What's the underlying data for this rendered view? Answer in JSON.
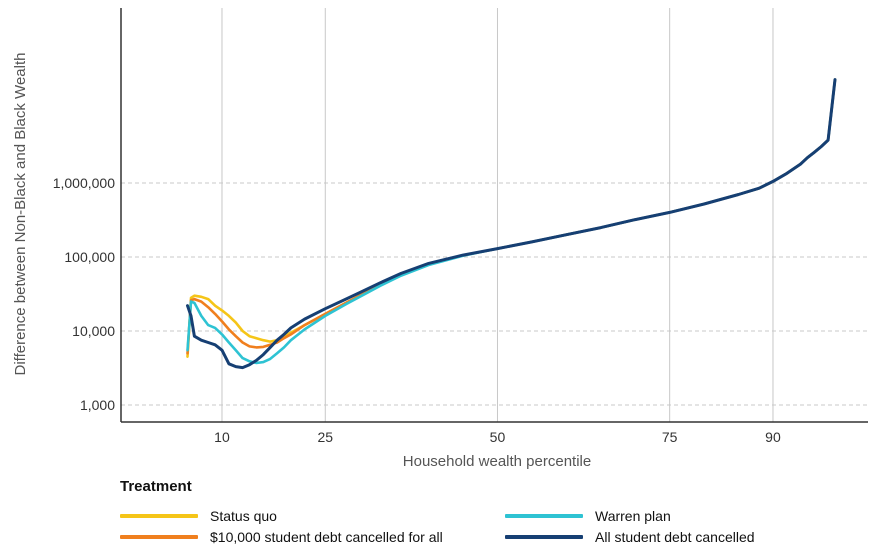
{
  "chart_data": {
    "type": "line",
    "xlabel": "Household wealth percentile",
    "ylabel": "Difference between Non-Black and Black Wealth",
    "x_ticks": [
      10,
      25,
      50,
      75,
      90
    ],
    "x_tick_labels": [
      "10",
      "25",
      "50",
      "75",
      "90"
    ],
    "y_scale": "log",
    "y_ticks": [
      1000,
      10000,
      100000,
      1000000
    ],
    "y_tick_labels": [
      "1,000",
      "10,000",
      "100,000",
      "1,000,000"
    ],
    "xlim": [
      0,
      100
    ],
    "ylim": [
      400,
      30000000
    ],
    "grid": true,
    "legend_title": "Treatment",
    "legend_position": "bottom",
    "series": [
      {
        "name": "Status quo",
        "color": "#f5c518",
        "points": [
          [
            5,
            4500
          ],
          [
            5.5,
            28000
          ],
          [
            6,
            30000
          ],
          [
            7,
            29000
          ],
          [
            8,
            27000
          ],
          [
            9,
            22000
          ],
          [
            10,
            19000
          ],
          [
            11,
            16000
          ],
          [
            12,
            13000
          ],
          [
            13,
            10000
          ],
          [
            14,
            8500
          ],
          [
            15,
            8000
          ],
          [
            16,
            7500
          ],
          [
            17,
            7200
          ],
          [
            18,
            7500
          ],
          [
            19,
            8500
          ],
          [
            20,
            9500
          ],
          [
            22,
            12000
          ],
          [
            25,
            17000
          ],
          [
            28,
            24000
          ],
          [
            30,
            30000
          ],
          [
            33,
            42000
          ],
          [
            36,
            58000
          ],
          [
            40,
            80000
          ],
          [
            45,
            105000
          ],
          [
            50,
            130000
          ],
          [
            55,
            160000
          ],
          [
            60,
            200000
          ],
          [
            65,
            250000
          ],
          [
            70,
            320000
          ],
          [
            75,
            400000
          ],
          [
            80,
            520000
          ],
          [
            85,
            700000
          ],
          [
            88,
            850000
          ],
          [
            90,
            1050000
          ],
          [
            92,
            1350000
          ],
          [
            94,
            1800000
          ],
          [
            95,
            2200000
          ],
          [
            96,
            2600000
          ],
          [
            97,
            3100000
          ],
          [
            98,
            3800000
          ],
          [
            99,
            25000000
          ]
        ]
      },
      {
        "name": "$10,000 student debt cancelled for all",
        "color": "#f07f1e",
        "points": [
          [
            5,
            5000
          ],
          [
            5.5,
            26000
          ],
          [
            6,
            27000
          ],
          [
            7,
            25000
          ],
          [
            8,
            21000
          ],
          [
            9,
            17000
          ],
          [
            10,
            13500
          ],
          [
            11,
            10500
          ],
          [
            12,
            8500
          ],
          [
            13,
            7000
          ],
          [
            14,
            6200
          ],
          [
            15,
            6000
          ],
          [
            16,
            6100
          ],
          [
            17,
            6500
          ],
          [
            18,
            7000
          ],
          [
            19,
            8000
          ],
          [
            20,
            9000
          ],
          [
            22,
            12000
          ],
          [
            25,
            17000
          ],
          [
            28,
            24000
          ],
          [
            30,
            30000
          ],
          [
            33,
            42000
          ],
          [
            36,
            58000
          ],
          [
            40,
            80000
          ],
          [
            45,
            105000
          ],
          [
            50,
            130000
          ],
          [
            55,
            160000
          ],
          [
            60,
            200000
          ],
          [
            65,
            250000
          ],
          [
            70,
            320000
          ],
          [
            75,
            400000
          ],
          [
            80,
            520000
          ],
          [
            85,
            700000
          ],
          [
            88,
            850000
          ],
          [
            90,
            1050000
          ],
          [
            92,
            1350000
          ],
          [
            94,
            1800000
          ],
          [
            95,
            2200000
          ],
          [
            96,
            2600000
          ],
          [
            97,
            3100000
          ],
          [
            98,
            3800000
          ],
          [
            99,
            25000000
          ]
        ]
      },
      {
        "name": "Warren plan",
        "color": "#2ec3d3",
        "points": [
          [
            5,
            5500
          ],
          [
            5.5,
            25000
          ],
          [
            6,
            24000
          ],
          [
            7,
            16000
          ],
          [
            8,
            12000
          ],
          [
            9,
            11000
          ],
          [
            10,
            9000
          ],
          [
            11,
            7000
          ],
          [
            12,
            5500
          ],
          [
            13,
            4300
          ],
          [
            14,
            3900
          ],
          [
            15,
            3700
          ],
          [
            16,
            3800
          ],
          [
            17,
            4200
          ],
          [
            18,
            5000
          ],
          [
            19,
            6000
          ],
          [
            20,
            7500
          ],
          [
            22,
            10500
          ],
          [
            25,
            16000
          ],
          [
            28,
            23000
          ],
          [
            30,
            29000
          ],
          [
            33,
            41000
          ],
          [
            36,
            56000
          ],
          [
            40,
            78000
          ],
          [
            45,
            104000
          ],
          [
            50,
            130000
          ],
          [
            55,
            160000
          ],
          [
            60,
            200000
          ],
          [
            65,
            250000
          ],
          [
            70,
            320000
          ],
          [
            75,
            400000
          ],
          [
            80,
            520000
          ],
          [
            85,
            700000
          ],
          [
            88,
            850000
          ],
          [
            90,
            1050000
          ],
          [
            92,
            1350000
          ],
          [
            94,
            1800000
          ],
          [
            95,
            2200000
          ],
          [
            96,
            2600000
          ],
          [
            97,
            3100000
          ],
          [
            98,
            3800000
          ],
          [
            99,
            25000000
          ]
        ]
      },
      {
        "name": "All student debt cancelled",
        "color": "#163f73",
        "points": [
          [
            5,
            22000
          ],
          [
            5.5,
            16000
          ],
          [
            6,
            8500
          ],
          [
            7,
            7500
          ],
          [
            8,
            7000
          ],
          [
            9,
            6500
          ],
          [
            10,
            5500
          ],
          [
            11,
            3600
          ],
          [
            12,
            3300
          ],
          [
            13,
            3200
          ],
          [
            14,
            3500
          ],
          [
            15,
            4000
          ],
          [
            16,
            4800
          ],
          [
            17,
            6000
          ],
          [
            18,
            7500
          ],
          [
            19,
            9000
          ],
          [
            20,
            11000
          ],
          [
            22,
            14500
          ],
          [
            25,
            20000
          ],
          [
            28,
            27000
          ],
          [
            30,
            33000
          ],
          [
            33,
            45000
          ],
          [
            36,
            60000
          ],
          [
            40,
            82000
          ],
          [
            45,
            106000
          ],
          [
            50,
            130000
          ],
          [
            55,
            160000
          ],
          [
            60,
            200000
          ],
          [
            65,
            250000
          ],
          [
            70,
            320000
          ],
          [
            75,
            400000
          ],
          [
            80,
            520000
          ],
          [
            85,
            700000
          ],
          [
            88,
            850000
          ],
          [
            90,
            1050000
          ],
          [
            92,
            1350000
          ],
          [
            94,
            1800000
          ],
          [
            95,
            2200000
          ],
          [
            96,
            2600000
          ],
          [
            97,
            3100000
          ],
          [
            98,
            3800000
          ],
          [
            99,
            25000000
          ]
        ]
      }
    ]
  }
}
